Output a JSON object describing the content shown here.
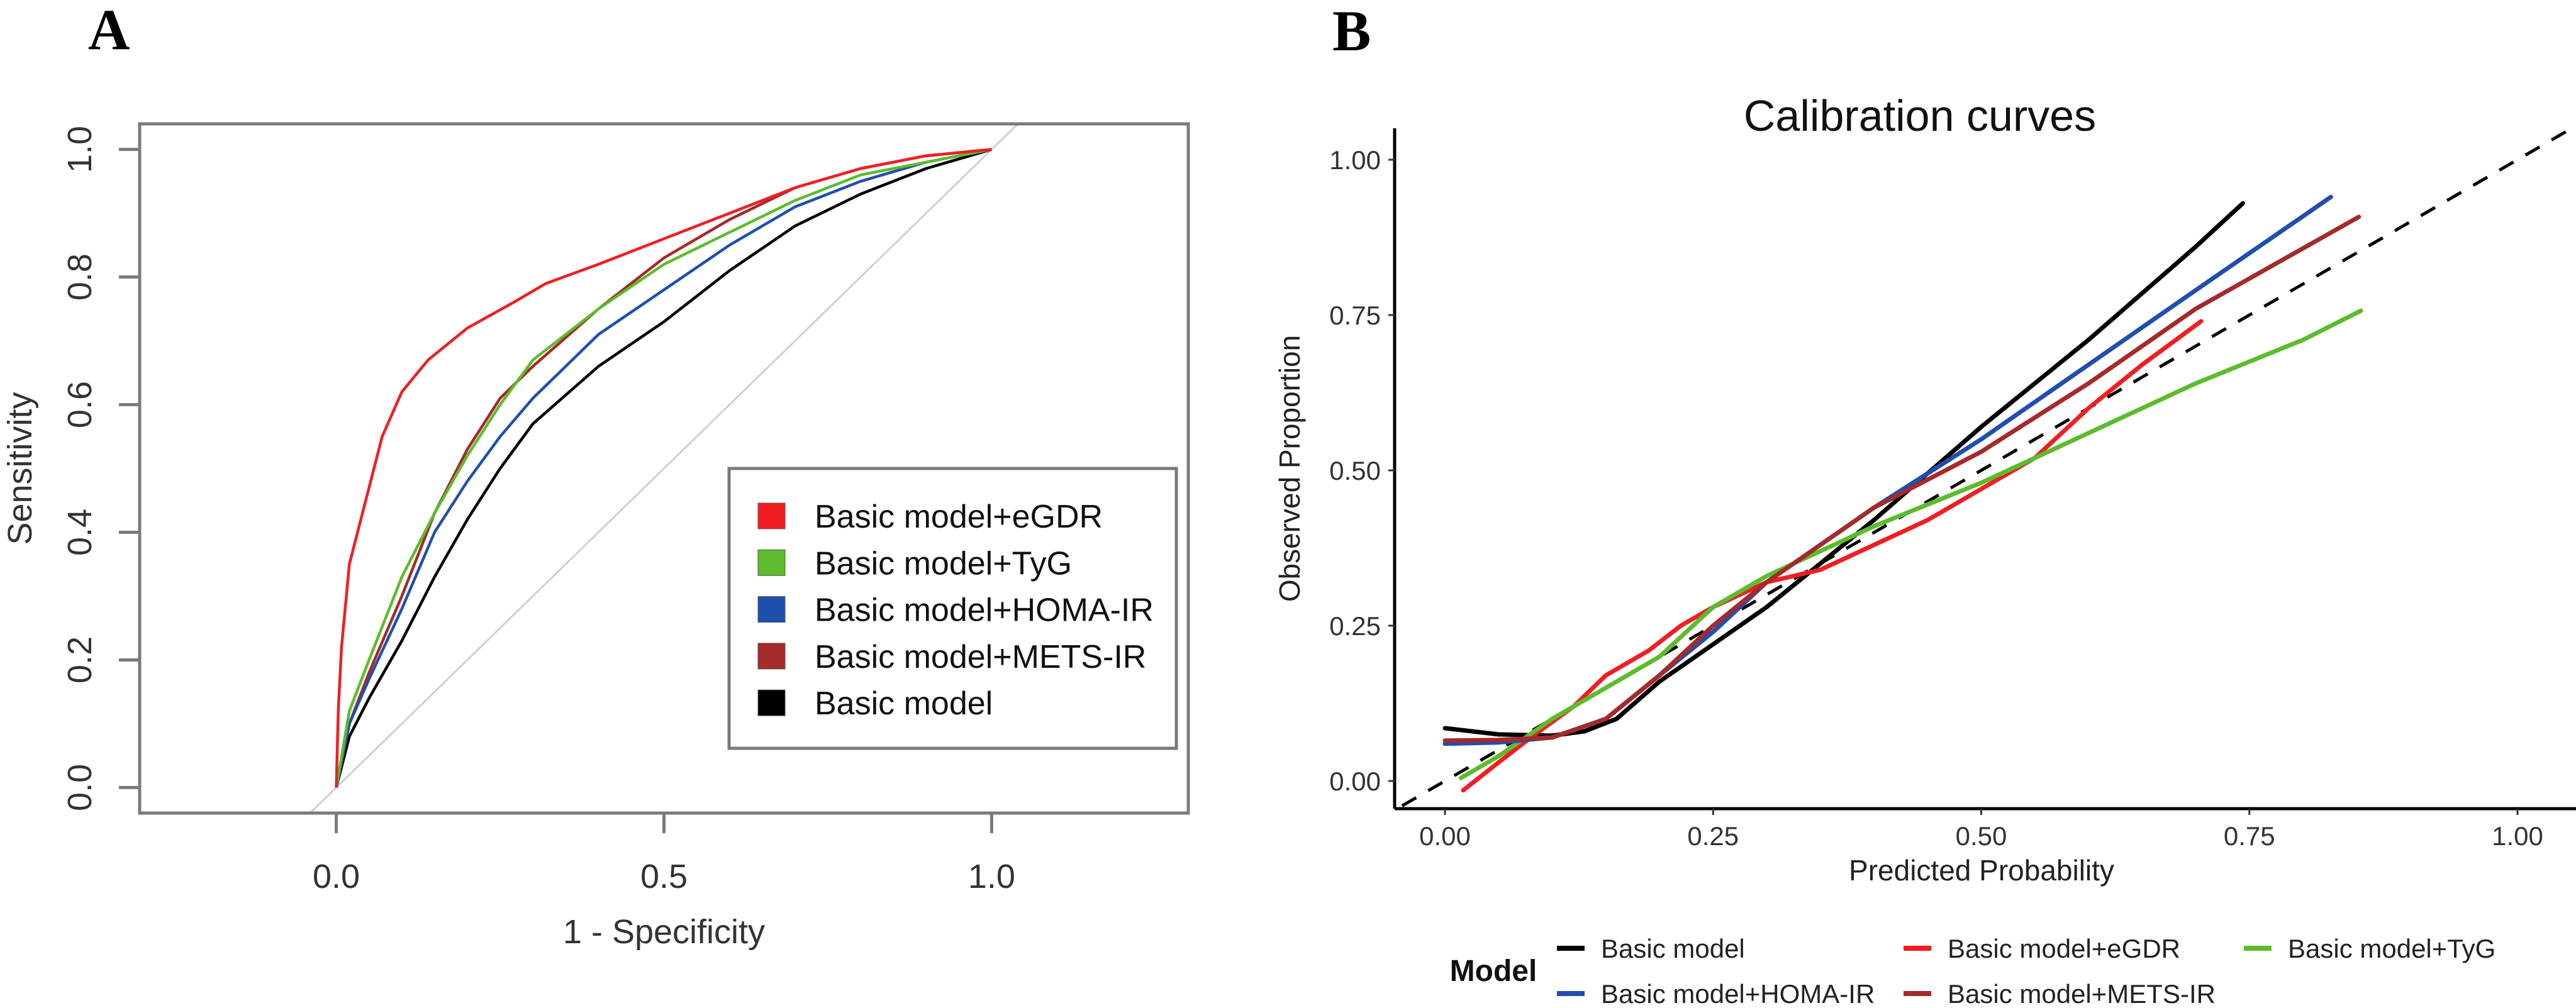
{
  "panels": {
    "a_label": "A",
    "b_label": "B"
  },
  "colors": {
    "red": "#f01e23",
    "green": "#5cbc2c",
    "blue": "#1f4fae",
    "brown": "#a52a2a",
    "black": "#000000",
    "axis_gray": "#7a7a7a",
    "diag_gray": "#d0d0d0"
  },
  "chart_data": [
    {
      "type": "line",
      "title": "",
      "xlabel": "1 - Specificity",
      "ylabel": "Sensitivity",
      "xlim": [
        -0.3,
        1.3
      ],
      "ylim": [
        -0.04,
        1.04
      ],
      "xticks": [
        0.0,
        0.5,
        1.0
      ],
      "xtick_labels": [
        "0.0",
        "0.5",
        "1.0"
      ],
      "yticks": [
        0.0,
        0.2,
        0.4,
        0.6,
        0.8,
        1.0
      ],
      "ytick_labels": [
        "0.0",
        "0.2",
        "0.4",
        "0.6",
        "0.8",
        "1.0"
      ],
      "grid": false,
      "legend_position": "bottom-right",
      "reference_line": {
        "from": [
          -0.04,
          -0.04
        ],
        "to": [
          1.04,
          1.04
        ],
        "style": "solid-gray"
      },
      "series": [
        {
          "name": "Basic model+eGDR",
          "color_key": "red",
          "x": [
            0,
            0.003,
            0.008,
            0.02,
            0.04,
            0.07,
            0.1,
            0.14,
            0.2,
            0.27,
            0.32,
            0.4,
            0.5,
            0.55,
            0.6,
            0.7,
            0.8,
            0.9,
            1
          ],
          "y": [
            0,
            0.12,
            0.22,
            0.35,
            0.43,
            0.55,
            0.62,
            0.67,
            0.72,
            0.76,
            0.79,
            0.82,
            0.86,
            0.88,
            0.9,
            0.94,
            0.97,
            0.99,
            1
          ]
        },
        {
          "name": "Basic model+TyG",
          "color_key": "green",
          "x": [
            0,
            0.02,
            0.05,
            0.1,
            0.15,
            0.2,
            0.25,
            0.3,
            0.4,
            0.5,
            0.6,
            0.7,
            0.8,
            0.9,
            1
          ],
          "y": [
            0,
            0.12,
            0.2,
            0.33,
            0.43,
            0.52,
            0.6,
            0.67,
            0.75,
            0.82,
            0.87,
            0.92,
            0.96,
            0.98,
            1
          ]
        },
        {
          "name": "Basic model+HOMA-IR",
          "color_key": "blue",
          "x": [
            0,
            0.02,
            0.05,
            0.1,
            0.15,
            0.2,
            0.25,
            0.3,
            0.4,
            0.5,
            0.6,
            0.7,
            0.8,
            0.9,
            1
          ],
          "y": [
            0,
            0.1,
            0.17,
            0.28,
            0.4,
            0.48,
            0.55,
            0.61,
            0.71,
            0.78,
            0.85,
            0.91,
            0.95,
            0.98,
            1
          ]
        },
        {
          "name": "Basic model+METS-IR",
          "color_key": "brown",
          "x": [
            0,
            0.02,
            0.05,
            0.1,
            0.15,
            0.2,
            0.25,
            0.3,
            0.4,
            0.5,
            0.6,
            0.7,
            0.8,
            0.9,
            1
          ],
          "y": [
            0,
            0.1,
            0.18,
            0.3,
            0.43,
            0.53,
            0.61,
            0.66,
            0.75,
            0.83,
            0.89,
            0.94,
            0.97,
            0.99,
            1
          ]
        },
        {
          "name": "Basic model",
          "color_key": "black",
          "x": [
            0,
            0.02,
            0.05,
            0.1,
            0.15,
            0.2,
            0.25,
            0.3,
            0.4,
            0.5,
            0.6,
            0.7,
            0.8,
            0.9,
            1
          ],
          "y": [
            0,
            0.08,
            0.14,
            0.23,
            0.33,
            0.42,
            0.5,
            0.57,
            0.66,
            0.73,
            0.81,
            0.88,
            0.93,
            0.97,
            1
          ]
        }
      ]
    },
    {
      "type": "line",
      "title": "Calibration curves",
      "xlabel": "Predicted Probability",
      "ylabel": "Observed Proportion",
      "xlim": [
        -0.04,
        1.05
      ],
      "ylim": [
        -0.045,
        1.05
      ],
      "xticks": [
        0,
        0.25,
        0.5,
        0.75,
        1.0
      ],
      "xtick_labels": [
        "0.00",
        "0.25",
        "0.50",
        "0.75",
        "1.00"
      ],
      "yticks": [
        0,
        0.25,
        0.5,
        0.75,
        1.0
      ],
      "ytick_labels": [
        "0.00",
        "0.25",
        "0.50",
        "0.75",
        "1.00"
      ],
      "grid": false,
      "legend_title": "Model",
      "legend_position": "bottom",
      "reference_line": {
        "from": [
          -0.04,
          -0.04
        ],
        "to": [
          1.05,
          1.05
        ],
        "style": "dashed-black"
      },
      "series": [
        {
          "name": "Basic model",
          "color_key": "black",
          "x": [
            0,
            0.05,
            0.1,
            0.13,
            0.16,
            0.2,
            0.25,
            0.3,
            0.4,
            0.5,
            0.6,
            0.7,
            0.744
          ],
          "y": [
            0.085,
            0.075,
            0.073,
            0.08,
            0.1,
            0.16,
            0.22,
            0.28,
            0.42,
            0.57,
            0.71,
            0.86,
            0.93
          ]
        },
        {
          "name": "Basic model+eGDR",
          "color_key": "red",
          "x": [
            0.017,
            0.05,
            0.08,
            0.12,
            0.15,
            0.19,
            0.22,
            0.25,
            0.3,
            0.35,
            0.4,
            0.45,
            0.5,
            0.55,
            0.6,
            0.65,
            0.705
          ],
          "y": [
            -0.015,
            0.03,
            0.07,
            0.12,
            0.17,
            0.21,
            0.25,
            0.28,
            0.32,
            0.34,
            0.38,
            0.42,
            0.47,
            0.52,
            0.6,
            0.67,
            0.74
          ]
        },
        {
          "name": "Basic model+TyG",
          "color_key": "green",
          "x": [
            0.015,
            0.05,
            0.1,
            0.15,
            0.2,
            0.25,
            0.3,
            0.4,
            0.5,
            0.6,
            0.7,
            0.8,
            0.854
          ],
          "y": [
            0.005,
            0.04,
            0.1,
            0.15,
            0.2,
            0.28,
            0.33,
            0.41,
            0.48,
            0.56,
            0.64,
            0.71,
            0.757
          ]
        },
        {
          "name": "Basic model+HOMA-IR",
          "color_key": "blue",
          "x": [
            0,
            0.05,
            0.1,
            0.15,
            0.2,
            0.25,
            0.3,
            0.4,
            0.5,
            0.6,
            0.7,
            0.826
          ],
          "y": [
            0.06,
            0.062,
            0.07,
            0.1,
            0.17,
            0.24,
            0.32,
            0.44,
            0.55,
            0.67,
            0.79,
            0.94
          ]
        },
        {
          "name": "Basic model+METS-IR",
          "color_key": "brown",
          "x": [
            0,
            0.05,
            0.1,
            0.15,
            0.2,
            0.25,
            0.3,
            0.4,
            0.5,
            0.6,
            0.7,
            0.852
          ],
          "y": [
            0.065,
            0.066,
            0.07,
            0.1,
            0.17,
            0.25,
            0.32,
            0.44,
            0.53,
            0.64,
            0.76,
            0.908
          ]
        }
      ]
    }
  ]
}
